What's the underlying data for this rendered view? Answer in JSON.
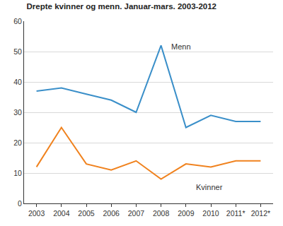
{
  "chart_data": {
    "type": "line",
    "title": "Drepte kvinner og menn. Januar-mars. 2003-2012",
    "categories": [
      "2003",
      "2004",
      "2005",
      "2006",
      "2007",
      "2008",
      "2009",
      "2010",
      "2011*",
      "2012*"
    ],
    "series": [
      {
        "name": "Menn",
        "color": "#3a8fc9",
        "values": [
          37,
          38,
          36,
          34,
          30,
          52,
          25,
          29,
          27,
          27
        ]
      },
      {
        "name": "Kvinner",
        "color": "#f0821e",
        "values": [
          12,
          25,
          13,
          11,
          14,
          8,
          13,
          12,
          14,
          14
        ]
      }
    ],
    "ylim": [
      0,
      60
    ],
    "yticks": [
      0,
      10,
      20,
      30,
      40,
      50,
      60
    ],
    "grid": true
  }
}
